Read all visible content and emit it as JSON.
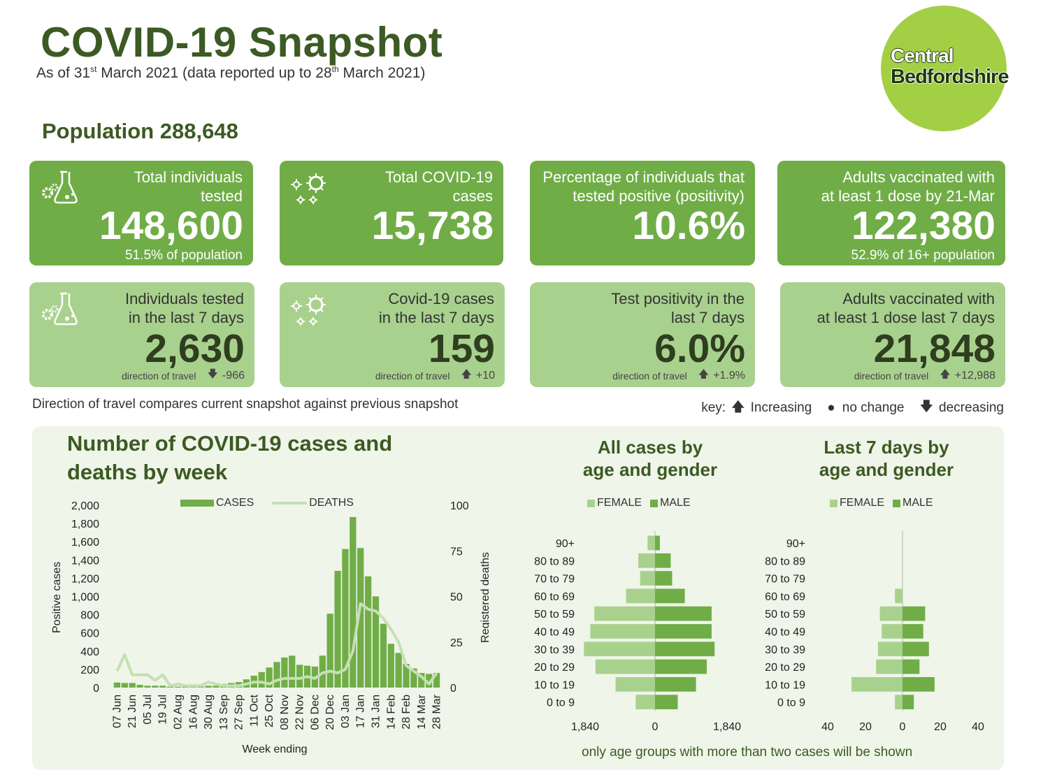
{
  "header": {
    "title": "COVID-19 Snapshot",
    "subtitle_a": "As of 31",
    "subtitle_sup1": "st",
    "subtitle_b": " March 2021 (data reported up to 28",
    "subtitle_sup2": "th",
    "subtitle_c": " March 2021)",
    "population": "Population 288,648",
    "logo_line1": "Central",
    "logo_line2": "Bedfordshire"
  },
  "cards_top": [
    {
      "label1": "Total individuals",
      "label2": "tested",
      "value": "148,600",
      "sub": "51.5% of population",
      "icon": "flask-gears-icon"
    },
    {
      "label1": "Total COVID-19",
      "label2": "cases",
      "value": "15,738",
      "sub": "",
      "icon": "virus-icon"
    },
    {
      "label1": "Percentage of individuals that",
      "label2": "tested positive (positivity)",
      "value": "10.6%",
      "sub": "",
      "icon": ""
    },
    {
      "label1": "Adults vaccinated with",
      "label2": "at least 1 dose by 21-Mar",
      "value": "122,380",
      "sub": "52.9% of 16+ population",
      "icon": ""
    }
  ],
  "cards_week": [
    {
      "label1": "Individuals tested",
      "label2": "in the last 7 days",
      "value": "2,630",
      "dir_label": "direction of travel",
      "arrow": "down",
      "change": "-966",
      "icon": "flask-gears-icon"
    },
    {
      "label1": "Covid-19 cases",
      "label2": "in the last 7 days",
      "value": "159",
      "dir_label": "direction of travel",
      "arrow": "up",
      "change": "+10",
      "icon": "virus-icon"
    },
    {
      "label1": "Test positivity in the",
      "label2": "last 7 days",
      "value": "6.0%",
      "dir_label": "direction of travel",
      "arrow": "up",
      "change": "+1.9%",
      "icon": ""
    },
    {
      "label1": "Adults vaccinated with",
      "label2": "at least 1 dose last 7 days",
      "value": "21,848",
      "dir_label": "direction of travel",
      "arrow": "up",
      "change": "+12,988",
      "icon": ""
    }
  ],
  "note": "Direction of travel compares current snapshot against previous snapshot",
  "key": {
    "label": "key:",
    "increasing": "Increasing",
    "no_change": "no change",
    "decreasing": "decreasing"
  },
  "colors": {
    "dark_green": "#70ad47",
    "light_green": "#a9d18e",
    "title_green": "#3c5a23",
    "female": "#a9d18e",
    "male": "#70ad47",
    "deaths_line": "#c5e0b4"
  },
  "footnote": "only age groups with more than two cases will be shown",
  "chart_data": [
    {
      "type": "bar",
      "title": "Number of COVID-19 cases and deaths by week",
      "title_line1": "Number of COVID-19 cases and",
      "title_line2": "deaths by week",
      "xlabel": "Week ending",
      "ylabel": "Positive cases",
      "y2label": "Registered deaths",
      "ylim": [
        0,
        2000
      ],
      "yticks": [
        "0",
        "200",
        "400",
        "600",
        "800",
        "1,000",
        "1,200",
        "1,400",
        "1,600",
        "1,800",
        "2,000"
      ],
      "y2lim": [
        0,
        100
      ],
      "y2ticks": [
        "0",
        "25",
        "50",
        "75",
        "100"
      ],
      "x_tick_labels": [
        "07 Jun",
        "21 Jun",
        "05 Jul",
        "19 Jul",
        "02 Aug",
        "16 Aug",
        "30 Aug",
        "13 Sep",
        "27 Sep",
        "11 Oct",
        "25 Oct",
        "08 Nov",
        "22 Nov",
        "06 Dec",
        "20 Dec",
        "03 Jan",
        "17 Jan",
        "31 Jan",
        "14 Feb",
        "28 Feb",
        "14 Mar",
        "28 Mar"
      ],
      "categories": [
        "07 Jun",
        "14 Jun",
        "21 Jun",
        "28 Jun",
        "05 Jul",
        "12 Jul",
        "19 Jul",
        "26 Jul",
        "02 Aug",
        "09 Aug",
        "16 Aug",
        "23 Aug",
        "30 Aug",
        "06 Sep",
        "13 Sep",
        "20 Sep",
        "27 Sep",
        "04 Oct",
        "11 Oct",
        "18 Oct",
        "25 Oct",
        "01 Nov",
        "08 Nov",
        "15 Nov",
        "22 Nov",
        "29 Nov",
        "06 Dec",
        "13 Dec",
        "20 Dec",
        "27 Dec",
        "03 Jan",
        "10 Jan",
        "17 Jan",
        "24 Jan",
        "31 Jan",
        "07 Feb",
        "14 Feb",
        "21 Feb",
        "28 Feb",
        "07 Mar",
        "14 Mar",
        "21 Mar",
        "28 Mar"
      ],
      "legend": [
        "CASES",
        "DEATHS"
      ],
      "series": [
        {
          "name": "CASES",
          "type": "bar",
          "axis": "left",
          "values": [
            55,
            50,
            50,
            30,
            20,
            20,
            20,
            10,
            10,
            10,
            15,
            10,
            20,
            20,
            40,
            50,
            60,
            90,
            130,
            170,
            220,
            280,
            330,
            350,
            250,
            240,
            230,
            350,
            810,
            1280,
            1520,
            1870,
            1530,
            1220,
            1000,
            700,
            480,
            380,
            260,
            210,
            160,
            150,
            160
          ]
        },
        {
          "name": "DEATHS",
          "type": "line",
          "axis": "right",
          "values": [
            9,
            18,
            7,
            7,
            7,
            4,
            7,
            1,
            2,
            1,
            1,
            1,
            3,
            2,
            1,
            1,
            1,
            2,
            3,
            3,
            2,
            4,
            5,
            5,
            5,
            6,
            5,
            8,
            9,
            8,
            10,
            20,
            46,
            43,
            42,
            38,
            32,
            25,
            12,
            9,
            6,
            2,
            8
          ]
        }
      ]
    },
    {
      "type": "bar",
      "orientation": "horizontal-pyramid",
      "title": "All cases by age and gender",
      "title_line1": "All cases by",
      "title_line2": "age and gender",
      "legend": [
        "FEMALE",
        "MALE"
      ],
      "categories": [
        "90+",
        "80 to 89",
        "70 to 79",
        "60 to 69",
        "50 to 59",
        "40 to 49",
        "30 to 39",
        "20 to 29",
        "10 to 19",
        "0 to 9"
      ],
      "xlim": [
        -1840,
        1840
      ],
      "xticks": [
        "1,840",
        "0",
        "1,840"
      ],
      "series": [
        {
          "name": "FEMALE",
          "values": [
            200,
            450,
            400,
            780,
            1630,
            1740,
            1910,
            1600,
            1060,
            520
          ]
        },
        {
          "name": "MALE",
          "values": [
            130,
            420,
            460,
            800,
            1520,
            1520,
            1600,
            1390,
            1100,
            610
          ]
        }
      ]
    },
    {
      "type": "bar",
      "orientation": "horizontal-pyramid",
      "title": "Last 7 days by age and gender",
      "title_line1": "Last 7 days by",
      "title_line2": "age and gender",
      "legend": [
        "FEMALE",
        "MALE"
      ],
      "categories": [
        "90+",
        "80 to 89",
        "70 to 79",
        "60 to 69",
        "50 to 59",
        "40 to 49",
        "30 to 39",
        "20 to 29",
        "10 to 19",
        "0 to 9"
      ],
      "xlim": [
        -40,
        40
      ],
      "xticks": [
        "40",
        "20",
        "0",
        "20",
        "40"
      ],
      "series": [
        {
          "name": "FEMALE",
          "values": [
            0,
            0,
            0,
            4,
            12,
            11,
            13,
            14,
            27,
            4
          ]
        },
        {
          "name": "MALE",
          "values": [
            0,
            0,
            0,
            0,
            12,
            11,
            14,
            9,
            17,
            6
          ]
        }
      ]
    }
  ]
}
